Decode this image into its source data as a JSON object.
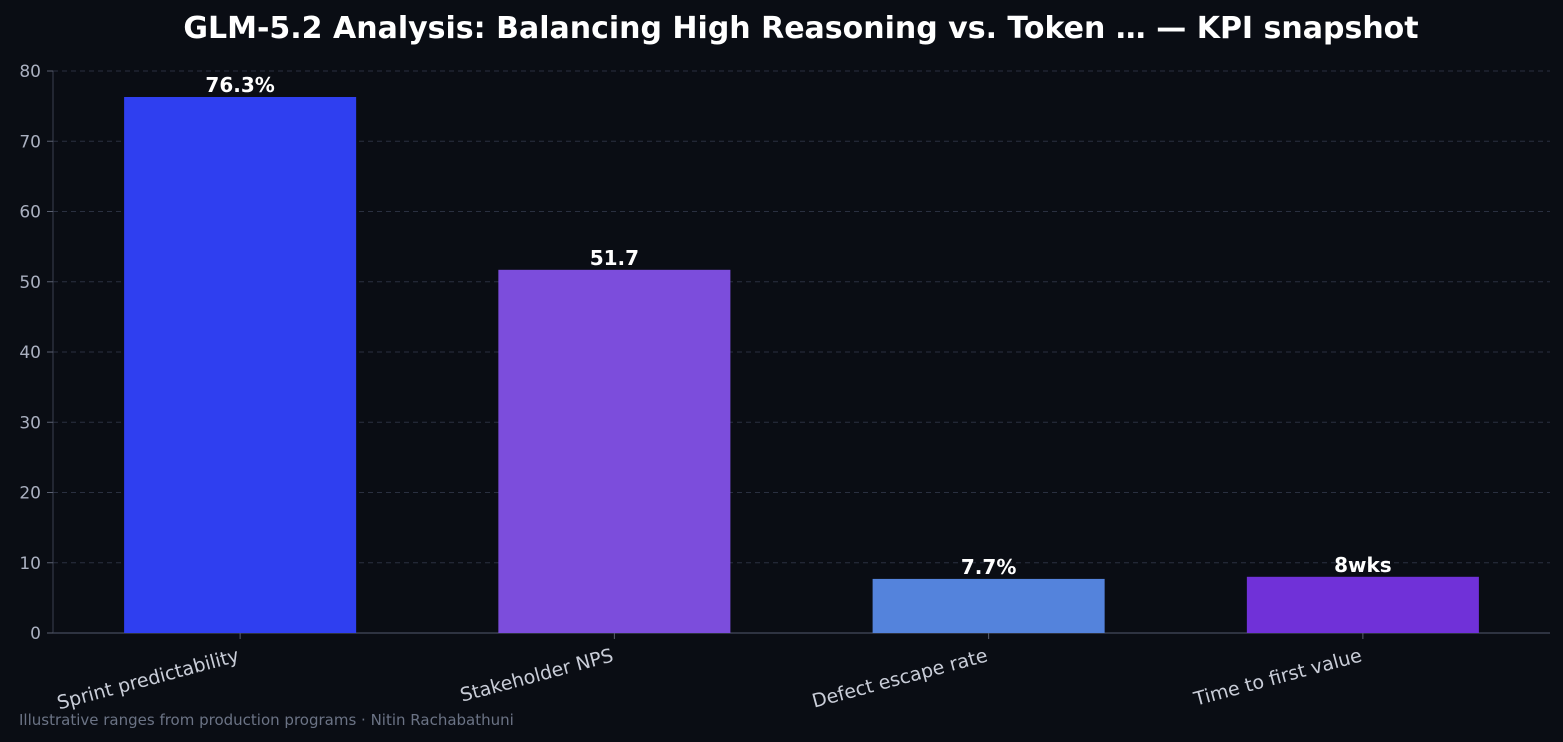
{
  "chart_data": {
    "type": "bar",
    "title": "GLM-5.2 Analysis: Balancing High Reasoning vs. Token … — KPI snapshot",
    "categories": [
      "Sprint predictability",
      "Stakeholder NPS",
      "Defect escape rate",
      "Time to first value"
    ],
    "values": [
      76.3,
      51.7,
      7.7,
      8
    ],
    "data_labels": [
      "76.3%",
      "51.7",
      "7.7%",
      "8wks"
    ],
    "colors": [
      "#2f3ff0",
      "#7c4ddc",
      "#5483dc",
      "#7031d8"
    ],
    "ylim": [
      0,
      80
    ],
    "yticks": [
      0,
      10,
      20,
      30,
      40,
      50,
      60,
      70,
      80
    ],
    "xlabel": "",
    "ylabel": "",
    "grid": true
  },
  "footer": "Illustrative ranges from production programs · Nitin Rachabathuni"
}
